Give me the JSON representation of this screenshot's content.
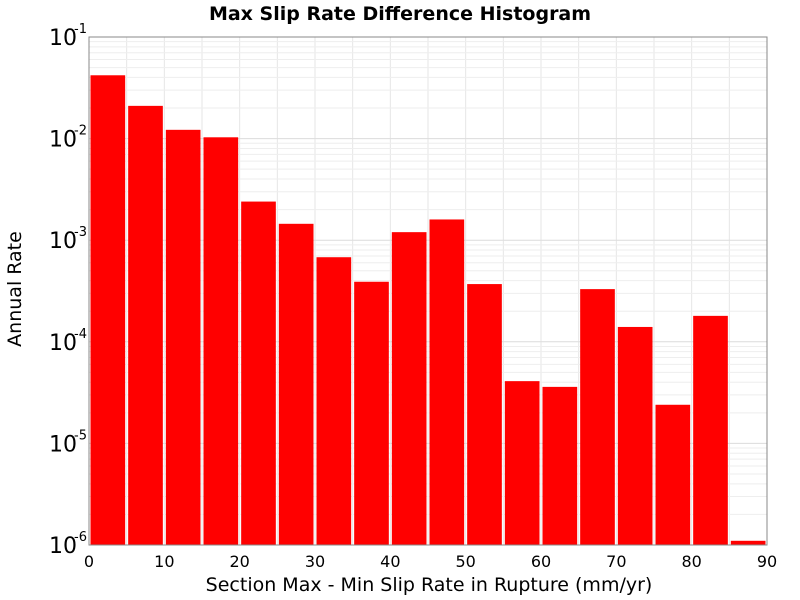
{
  "chart_data": {
    "type": "bar",
    "title": "Max Slip Rate Difference Histogram",
    "xlabel": "Section Max - Min Slip Rate in Rupture (mm/yr)",
    "ylabel": "Annual Rate",
    "xlim": [
      0,
      90
    ],
    "ylim": [
      1e-06,
      0.1
    ],
    "yscale": "log",
    "grid": true,
    "bar_color": "#ff0000",
    "bin_width": 5,
    "bins": [
      {
        "x": 2.5,
        "value": 0.042
      },
      {
        "x": 7.5,
        "value": 0.021
      },
      {
        "x": 12.5,
        "value": 0.0122
      },
      {
        "x": 17.5,
        "value": 0.0103
      },
      {
        "x": 22.5,
        "value": 0.0024
      },
      {
        "x": 27.5,
        "value": 0.00145
      },
      {
        "x": 32.5,
        "value": 0.00068
      },
      {
        "x": 37.5,
        "value": 0.00039
      },
      {
        "x": 42.5,
        "value": 0.0012
      },
      {
        "x": 47.5,
        "value": 0.0016
      },
      {
        "x": 52.5,
        "value": 0.00037
      },
      {
        "x": 57.5,
        "value": 4.1e-05
      },
      {
        "x": 62.5,
        "value": 3.6e-05
      },
      {
        "x": 67.5,
        "value": 0.00033
      },
      {
        "x": 72.5,
        "value": 0.00014
      },
      {
        "x": 77.5,
        "value": 2.4e-05
      },
      {
        "x": 82.5,
        "value": 0.00018
      },
      {
        "x": 87.5,
        "value": 1.1e-06
      }
    ],
    "x_ticks": [
      "0",
      "10",
      "20",
      "30",
      "40",
      "50",
      "60",
      "70",
      "80",
      "90"
    ],
    "y_ticks": [
      {
        "base": "10",
        "exp": "-6"
      },
      {
        "base": "10",
        "exp": "-5"
      },
      {
        "base": "10",
        "exp": "-4"
      },
      {
        "base": "10",
        "exp": "-3"
      },
      {
        "base": "10",
        "exp": "-2"
      },
      {
        "base": "10",
        "exp": "-1"
      }
    ]
  }
}
